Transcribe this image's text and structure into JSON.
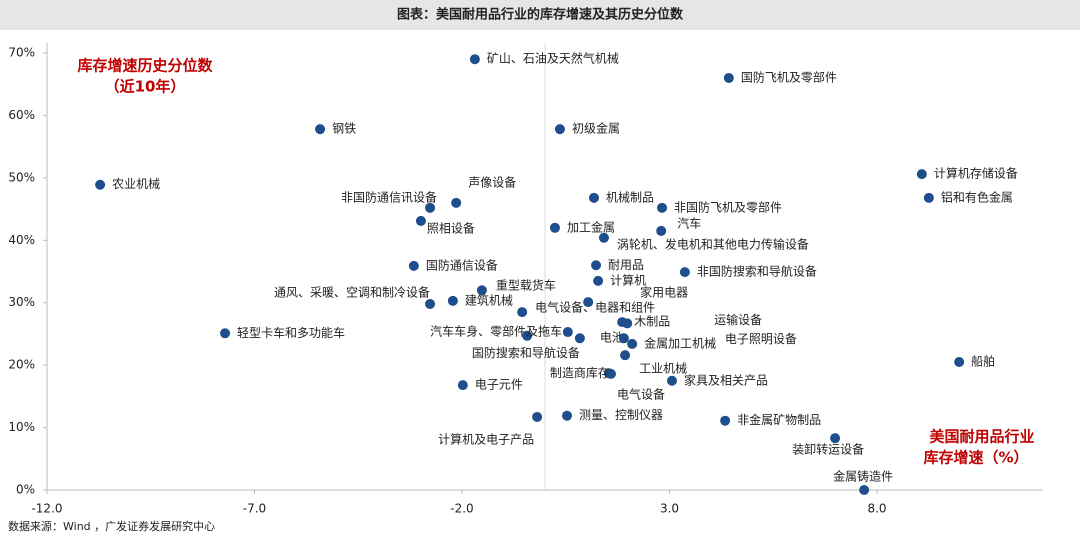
{
  "chart_data": {
    "type": "scatter",
    "title": "图表：美国耐用品行业的库存增速及其历史分位数",
    "annotations": [
      "库存增速历史分位数",
      "（近10年）",
      "美国耐用品行业",
      "库存增速（%）"
    ],
    "source": "数据来源：Wind ，广发证券发展研究中心",
    "xlim": [
      -12,
      12
    ],
    "ylim": [
      0,
      70
    ],
    "xticks": [
      {
        "value": -12,
        "label": "-12.0"
      },
      {
        "value": -7,
        "label": "-7.0"
      },
      {
        "value": -2,
        "label": "-2.0"
      },
      {
        "value": 3,
        "label": "3.0"
      },
      {
        "value": 8,
        "label": "8.0"
      }
    ],
    "yticks": [
      {
        "value": 0,
        "label": "0%"
      },
      {
        "value": 10,
        "label": "10%"
      },
      {
        "value": 20,
        "label": "20%"
      },
      {
        "value": 30,
        "label": "30%"
      },
      {
        "value": 40,
        "label": "40%"
      },
      {
        "value": 50,
        "label": "50%"
      },
      {
        "value": 60,
        "label": "60%"
      },
      {
        "value": 70,
        "label": "70%"
      }
    ],
    "point_labels": [
      "矿山、石油及天然气机械",
      "国防飞机及零部件",
      "钢铁",
      "初级金属",
      "农业机械",
      "计算机存储设备",
      "铝和有色金属",
      "声像设备",
      "非国防通信讯设备",
      "机械制品",
      "非国防飞机及零部件",
      "照相设备",
      "加工金属",
      "汽车",
      "涡轮机、发电机和其他电力传输设备",
      "国防通信设备",
      "耐用品",
      "非国防搜索和导航设备",
      "计算机",
      "重型载货车",
      "通风、采暖、空调和制冷设备",
      "建筑机械",
      "家用电器",
      "电气设备、电器和组件",
      "轻型卡车和多功能车",
      "木制品",
      "运输设备",
      "汽车车身、零部件及拖车",
      "电池",
      "国防搜索和导航设备",
      "电子照明设备",
      "金属加工机械",
      "工业机械",
      "船舶",
      "制造商库存",
      "家具及相关产品",
      "电子元件",
      "电气设备",
      "计算机及电子产品",
      "测量、控制仪器",
      "非金属矿物制品",
      "装卸转运设备",
      "金属铸造件"
    ],
    "x": [
      -1.69,
      4.43,
      -5.42,
      0.36,
      -10.72,
      9.08,
      9.25,
      -2.14,
      -2.77,
      1.18,
      2.82,
      -2.99,
      0.24,
      2.8,
      1.42,
      -3.16,
      1.23,
      3.37,
      1.28,
      -1.52,
      -2.77,
      -2.22,
      1.04,
      -0.55,
      -7.71,
      1.86,
      1.98,
      -0.43,
      0.55,
      0.84,
      1.9,
      2.1,
      1.93,
      9.98,
      1.54,
      3.06,
      -1.98,
      1.59,
      -0.19,
      0.53,
      4.34,
      6.99,
      7.69
    ],
    "series": [
      {
        "color": "#1f4e8c",
        "values": [
          69.0,
          66.0,
          57.8,
          57.8,
          48.9,
          50.6,
          46.8,
          46.0,
          45.2,
          46.8,
          45.2,
          43.1,
          42.0,
          41.5,
          40.4,
          35.9,
          36.0,
          34.9,
          33.5,
          32.0,
          29.8,
          30.3,
          30.1,
          28.5,
          25.1,
          26.9,
          26.7,
          24.7,
          25.3,
          24.3,
          24.3,
          23.4,
          21.6,
          20.5,
          18.7,
          17.5,
          16.8,
          18.6,
          11.7,
          11.9,
          11.1,
          8.3,
          0.0
        ]
      }
    ],
    "grid": false
  }
}
